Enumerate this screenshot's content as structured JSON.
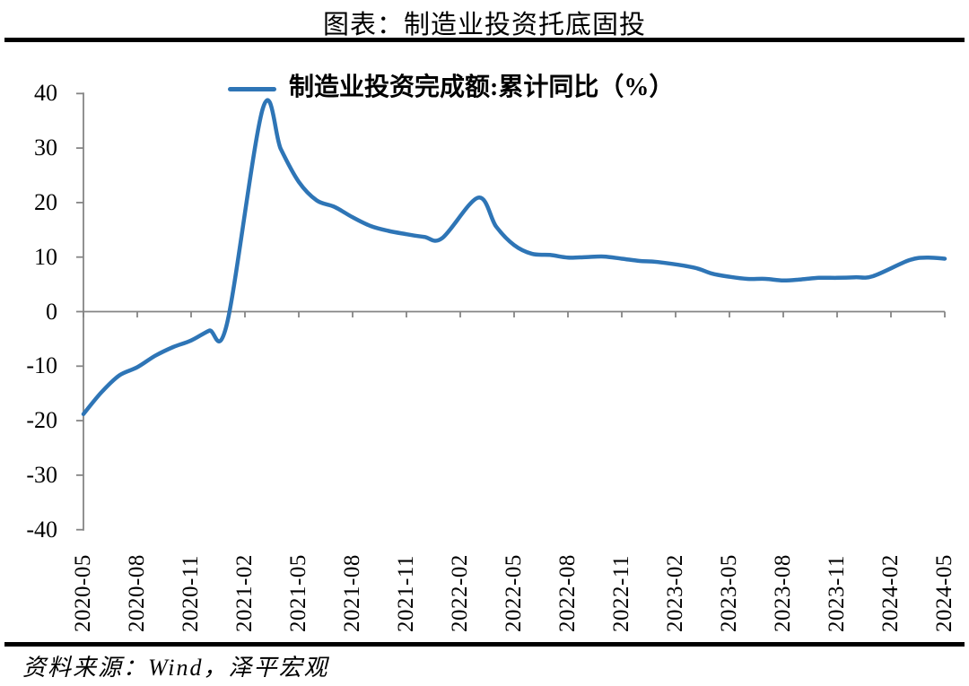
{
  "page": {
    "title": "图表：制造业投资托底固投",
    "source": "资料来源：Wind，泽平宏观"
  },
  "legend": {
    "label": "制造业投资完成额:累计同比（%）"
  },
  "chart_data": {
    "type": "line",
    "title": "图表：制造业投资托底固投",
    "xlabel": "",
    "ylabel": "",
    "ylim": [
      -40,
      40
    ],
    "y_ticks": [
      40,
      30,
      20,
      10,
      0,
      -10,
      -20,
      -30,
      -40
    ],
    "grid": false,
    "legend_position": "top",
    "axis_color": "#858585",
    "rule_color": "#000000",
    "x_tick_labels": [
      "2020-05",
      "2020-08",
      "2020-11",
      "2021-02",
      "2021-05",
      "2021-08",
      "2021-11",
      "2022-02",
      "2022-05",
      "2022-08",
      "2022-11",
      "2023-02",
      "2023-05",
      "2023-08",
      "2023-11",
      "2024-02",
      "2024-05"
    ],
    "series": [
      {
        "name": "制造业投资完成额:累计同比（%）",
        "color": "#2E75B6",
        "x": [
          "2020-05",
          "2020-06",
          "2020-07",
          "2020-08",
          "2020-09",
          "2020-10",
          "2020-11",
          "2020-12",
          "2021-01",
          "2021-02",
          "2021-03",
          "2021-04",
          "2021-05",
          "2021-06",
          "2021-07",
          "2021-08",
          "2021-09",
          "2021-10",
          "2021-11",
          "2021-12",
          "2022-01",
          "2022-02",
          "2022-03",
          "2022-04",
          "2022-05",
          "2022-06",
          "2022-07",
          "2022-08",
          "2022-09",
          "2022-10",
          "2022-11",
          "2022-12",
          "2023-01",
          "2023-02",
          "2023-03",
          "2023-04",
          "2023-05",
          "2023-06",
          "2023-07",
          "2023-08",
          "2023-09",
          "2023-10",
          "2023-11",
          "2023-12",
          "2024-01",
          "2024-02",
          "2024-03",
          "2024-04",
          "2024-05"
        ],
        "values": [
          -18.8,
          -14.8,
          -11.7,
          -10.2,
          -8.1,
          -6.5,
          -5.3,
          -3.5,
          -2.2,
          null,
          37.3,
          29.8,
          23.8,
          20.4,
          19.2,
          17.3,
          15.7,
          14.8,
          14.2,
          13.7,
          13.5,
          null,
          20.9,
          15.6,
          12.2,
          10.6,
          10.4,
          9.9,
          10.0,
          10.1,
          9.7,
          9.3,
          9.1,
          null,
          8.1,
          7.0,
          6.4,
          6.0,
          6.0,
          5.7,
          5.9,
          6.2,
          6.2,
          6.3,
          6.5,
          null,
          9.4,
          9.9,
          9.7
        ]
      }
    ],
    "source": "资料来源：Wind，泽平宏观"
  }
}
